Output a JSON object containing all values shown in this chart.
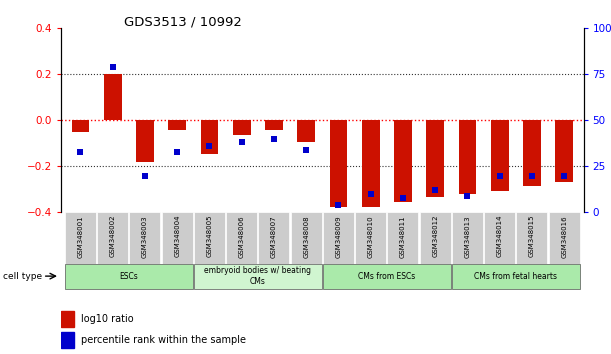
{
  "title": "GDS3513 / 10992",
  "samples": [
    "GSM348001",
    "GSM348002",
    "GSM348003",
    "GSM348004",
    "GSM348005",
    "GSM348006",
    "GSM348007",
    "GSM348008",
    "GSM348009",
    "GSM348010",
    "GSM348011",
    "GSM348012",
    "GSM348013",
    "GSM348014",
    "GSM348015",
    "GSM348016"
  ],
  "log10_ratio": [
    -0.05,
    0.2,
    -0.18,
    -0.04,
    -0.145,
    -0.065,
    -0.04,
    -0.095,
    -0.375,
    -0.375,
    -0.355,
    -0.335,
    -0.32,
    -0.305,
    -0.285,
    -0.27
  ],
  "percentile": [
    33,
    79,
    20,
    33,
    36,
    38,
    40,
    34,
    4,
    10,
    8,
    12,
    9,
    20,
    20,
    20
  ],
  "cell_type_groups": [
    {
      "label": "ESCs",
      "start": 0,
      "end": 3,
      "color": "#aaeaaa"
    },
    {
      "label": "embryoid bodies w/ beating\nCMs",
      "start": 4,
      "end": 7,
      "color": "#d0f5d0"
    },
    {
      "label": "CMs from ESCs",
      "start": 8,
      "end": 11,
      "color": "#aaeaaa"
    },
    {
      "label": "CMs from fetal hearts",
      "start": 12,
      "end": 15,
      "color": "#aaeaaa"
    }
  ],
  "bar_color": "#cc1100",
  "dot_color": "#0000cc",
  "ylim_left": [
    -0.4,
    0.4
  ],
  "ylim_right": [
    0,
    100
  ],
  "yticks_left": [
    -0.4,
    -0.2,
    0,
    0.2,
    0.4
  ],
  "yticks_right": [
    0,
    25,
    50,
    75,
    100
  ],
  "bar_width": 0.55,
  "dot_size": 18,
  "legend_items": [
    {
      "label": "log10 ratio",
      "color": "#cc1100"
    },
    {
      "label": "percentile rank within the sample",
      "color": "#0000cc"
    }
  ],
  "sample_box_color": "#cccccc",
  "hline_colors": {
    "zero": "#cc0000",
    "other": "#333333"
  }
}
